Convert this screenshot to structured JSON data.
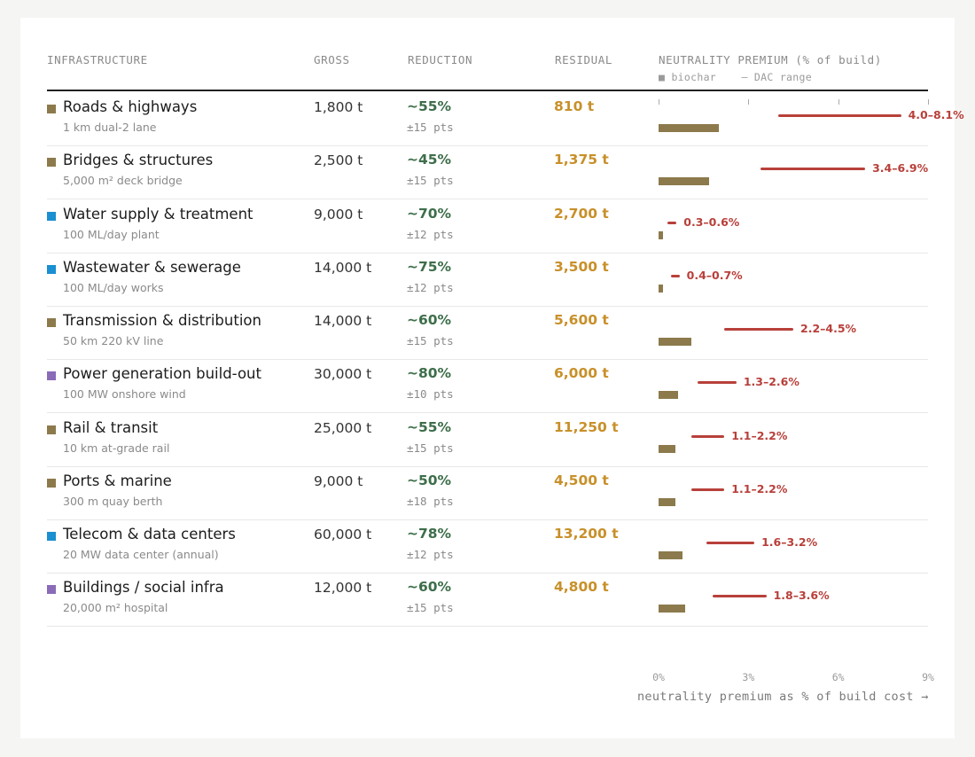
{
  "headers": {
    "infrastructure": "INFRASTRUCTURE",
    "gross": "GROSS",
    "reduction": "REDUCTION",
    "residual": "RESIDUAL",
    "premium": "NEUTRALITY PREMIUM (% of build)"
  },
  "legend": {
    "biochar": "■ biochar",
    "dac": "— DAC range"
  },
  "colors": {
    "transport": "#8c7a4c",
    "water": "#1a8fd1",
    "energy": "#8a6bb8",
    "biochar": "#8c7a4c",
    "dac": "#b8403a"
  },
  "chart_data": {
    "type": "table",
    "x_axis": {
      "range": [
        0,
        9
      ],
      "unit": "%",
      "ticks": [
        "0%",
        "3%",
        "6%",
        "9%"
      ],
      "label": "neutrality premium as % of build cost →"
    },
    "rows": [
      {
        "name": "Roads & highways",
        "sub": "1 km dual-2 lane",
        "color": "#8c7a4c",
        "gross": "1,800 t",
        "reduction": "~55%",
        "pm": "±15 pts",
        "residual": "810 t",
        "biochar": 2.0,
        "dac_low": 4.0,
        "dac_high": 8.1,
        "dac_label": "4.0–8.1%"
      },
      {
        "name": "Bridges & structures",
        "sub": "5,000 m² deck bridge",
        "color": "#8c7a4c",
        "gross": "2,500 t",
        "reduction": "~45%",
        "pm": "±15 pts",
        "residual": "1,375 t",
        "biochar": 1.7,
        "dac_low": 3.4,
        "dac_high": 6.9,
        "dac_label": "3.4–6.9%"
      },
      {
        "name": "Water supply & treatment",
        "sub": "100 ML/day plant",
        "color": "#1a8fd1",
        "gross": "9,000 t",
        "reduction": "~70%",
        "pm": "±12 pts",
        "residual": "2,700 t",
        "biochar": 0.15,
        "dac_low": 0.3,
        "dac_high": 0.6,
        "dac_label": "0.3–0.6%"
      },
      {
        "name": "Wastewater & sewerage",
        "sub": "100 ML/day works",
        "color": "#1a8fd1",
        "gross": "14,000 t",
        "reduction": "~75%",
        "pm": "±12 pts",
        "residual": "3,500 t",
        "biochar": 0.15,
        "dac_low": 0.4,
        "dac_high": 0.7,
        "dac_label": "0.4–0.7%"
      },
      {
        "name": "Transmission & distribution",
        "sub": "50 km 220 kV line",
        "color": "#8c7a4c",
        "gross": "14,000 t",
        "reduction": "~60%",
        "pm": "±15 pts",
        "residual": "5,600 t",
        "biochar": 1.1,
        "dac_low": 2.2,
        "dac_high": 4.5,
        "dac_label": "2.2–4.5%"
      },
      {
        "name": "Power generation build-out",
        "sub": "100 MW onshore wind",
        "color": "#8a6bb8",
        "gross": "30,000 t",
        "reduction": "~80%",
        "pm": "±10 pts",
        "residual": "6,000 t",
        "biochar": 0.65,
        "dac_low": 1.3,
        "dac_high": 2.6,
        "dac_label": "1.3–2.6%"
      },
      {
        "name": "Rail & transit",
        "sub": "10 km at-grade rail",
        "color": "#8c7a4c",
        "gross": "25,000 t",
        "reduction": "~55%",
        "pm": "±15 pts",
        "residual": "11,250 t",
        "biochar": 0.55,
        "dac_low": 1.1,
        "dac_high": 2.2,
        "dac_label": "1.1–2.2%"
      },
      {
        "name": "Ports & marine",
        "sub": "300 m quay berth",
        "color": "#8c7a4c",
        "gross": "9,000 t",
        "reduction": "~50%",
        "pm": "±18 pts",
        "residual": "4,500 t",
        "biochar": 0.55,
        "dac_low": 1.1,
        "dac_high": 2.2,
        "dac_label": "1.1–2.2%"
      },
      {
        "name": "Telecom & data centers",
        "sub": "20 MW data center (annual)",
        "color": "#1a8fd1",
        "gross": "60,000 t",
        "reduction": "~78%",
        "pm": "±12 pts",
        "residual": "13,200 t",
        "biochar": 0.8,
        "dac_low": 1.6,
        "dac_high": 3.2,
        "dac_label": "1.6–3.2%"
      },
      {
        "name": "Buildings / social infra",
        "sub": "20,000 m² hospital",
        "color": "#8a6bb8",
        "gross": "12,000 t",
        "reduction": "~60%",
        "pm": "±15 pts",
        "residual": "4,800 t",
        "biochar": 0.9,
        "dac_low": 1.8,
        "dac_high": 3.6,
        "dac_label": "1.8–3.6%"
      }
    ]
  }
}
